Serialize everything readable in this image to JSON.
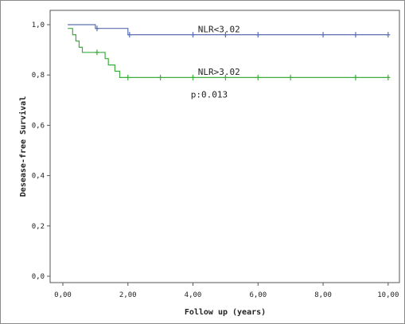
{
  "chart_data": {
    "type": "line",
    "title": "",
    "xlabel": "Follow up (years)",
    "ylabel": "Desease-free Survival",
    "xlim": [
      0,
      10.2
    ],
    "ylim": [
      0,
      1.0
    ],
    "x_ticks": [
      0,
      2,
      4,
      6,
      8,
      10
    ],
    "x_tick_labels": [
      "0,00",
      "2,00",
      "4,00",
      "6,00",
      "8,00",
      "10,00"
    ],
    "y_ticks": [
      0,
      0.2,
      0.4,
      0.6,
      0.8,
      1.0
    ],
    "y_tick_labels": [
      "0,0",
      "0,2",
      "0,4",
      "0,6",
      "0,8",
      "1,0"
    ],
    "grid": false,
    "legend": "none",
    "annotations": [
      {
        "text": "NLR<3.02",
        "x": 4.8,
        "y": 0.97
      },
      {
        "text": "NLR>3.02",
        "x": 4.8,
        "y": 0.8
      },
      {
        "text": "p:0.013",
        "x": 4.5,
        "y": 0.71
      }
    ],
    "series": [
      {
        "color": "#5a6fb0",
        "steps": [
          [
            0.15,
            1.0
          ],
          [
            1.0,
            1.0
          ],
          [
            1.0,
            0.985
          ],
          [
            2.0,
            0.985
          ],
          [
            2.0,
            0.96
          ],
          [
            10.0,
            0.96
          ]
        ],
        "censored": [
          [
            1.05,
            0.985
          ],
          [
            2.05,
            0.96
          ],
          [
            4.0,
            0.96
          ],
          [
            5.0,
            0.96
          ],
          [
            6.0,
            0.96
          ],
          [
            8.0,
            0.96
          ],
          [
            9.0,
            0.96
          ],
          [
            10.0,
            0.96
          ]
        ]
      },
      {
        "color": "#3dae3d",
        "steps": [
          [
            0.15,
            0.985
          ],
          [
            0.3,
            0.985
          ],
          [
            0.3,
            0.96
          ],
          [
            0.4,
            0.96
          ],
          [
            0.4,
            0.935
          ],
          [
            0.5,
            0.935
          ],
          [
            0.5,
            0.91
          ],
          [
            0.6,
            0.91
          ],
          [
            0.6,
            0.89
          ],
          [
            1.3,
            0.89
          ],
          [
            1.3,
            0.865
          ],
          [
            1.4,
            0.865
          ],
          [
            1.4,
            0.84
          ],
          [
            1.6,
            0.84
          ],
          [
            1.6,
            0.815
          ],
          [
            1.75,
            0.815
          ],
          [
            1.75,
            0.79
          ],
          [
            10.0,
            0.79
          ]
        ],
        "censored": [
          [
            1.05,
            0.89
          ],
          [
            2.0,
            0.79
          ],
          [
            3.0,
            0.79
          ],
          [
            4.0,
            0.79
          ],
          [
            5.0,
            0.79
          ],
          [
            6.0,
            0.79
          ],
          [
            7.0,
            0.79
          ],
          [
            9.0,
            0.79
          ],
          [
            10.0,
            0.79
          ]
        ]
      }
    ]
  }
}
